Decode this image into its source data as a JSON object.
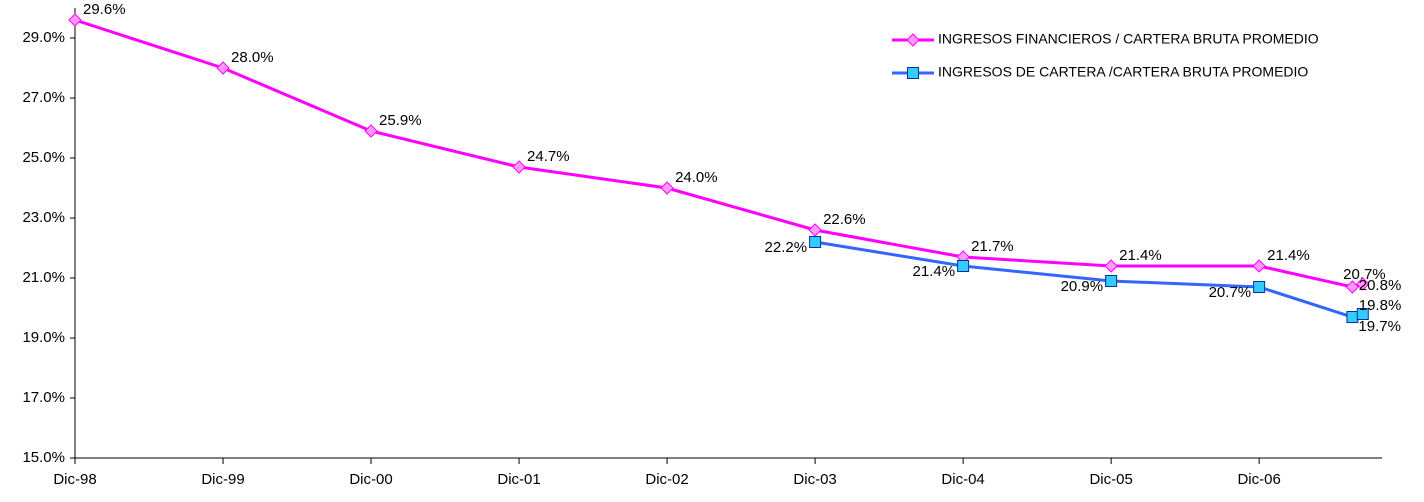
{
  "chart_data": {
    "type": "line",
    "x": [
      0,
      1,
      2,
      3,
      4,
      5,
      6,
      7,
      8,
      8.63,
      8.7
    ],
    "xlim": [
      0,
      8.83
    ],
    "xticks": [
      {
        "value": 0,
        "label": "Dic-98"
      },
      {
        "value": 1,
        "label": "Dic-99"
      },
      {
        "value": 2,
        "label": "Dic-00"
      },
      {
        "value": 3,
        "label": "Dic-01"
      },
      {
        "value": 4,
        "label": "Dic-02"
      },
      {
        "value": 5,
        "label": "Dic-03"
      },
      {
        "value": 6,
        "label": "Dic-04"
      },
      {
        "value": 7,
        "label": "Dic-05"
      },
      {
        "value": 8,
        "label": "Dic-06"
      }
    ],
    "ylim": [
      15,
      30
    ],
    "yticks": [
      {
        "value": 15,
        "label": "15.0%"
      },
      {
        "value": 17,
        "label": "17.0%"
      },
      {
        "value": 19,
        "label": "19.0%"
      },
      {
        "value": 21,
        "label": "21.0%"
      },
      {
        "value": 23,
        "label": "23.0%"
      },
      {
        "value": 25,
        "label": "25.0%"
      },
      {
        "value": 27,
        "label": "27.0%"
      },
      {
        "value": 29,
        "label": "29.0%"
      }
    ],
    "legend": "upper right",
    "series": [
      {
        "name": "INGRESOS FINANCIEROS / CARTERA BRUTA PROMEDIO",
        "color": "#ff00ff",
        "marker": "diamond",
        "marker_color": "#ff99ff",
        "values": [
          29.6,
          28.0,
          25.9,
          24.7,
          24.0,
          22.6,
          21.7,
          21.4,
          21.4,
          20.7,
          20.8
        ],
        "value_labels": [
          "29.6%",
          "28.0%",
          "25.9%",
          "24.7%",
          "24.0%",
          "22.6%",
          "21.7%",
          "21.4%",
          "21.4%",
          "20.7%",
          "20.8%"
        ]
      },
      {
        "name": "INGRESOS DE CARTERA /CARTERA BRUTA PROMEDIO",
        "color": "#3366ff",
        "marker": "square",
        "marker_color": "#33ccff",
        "values": [
          null,
          null,
          null,
          null,
          null,
          22.2,
          21.4,
          20.9,
          20.7,
          19.7,
          19.8
        ],
        "value_labels": [
          null,
          null,
          null,
          null,
          null,
          "22.2%",
          "21.4%",
          "20.9%",
          "20.7%",
          "19.7%",
          "19.8%"
        ]
      }
    ]
  }
}
